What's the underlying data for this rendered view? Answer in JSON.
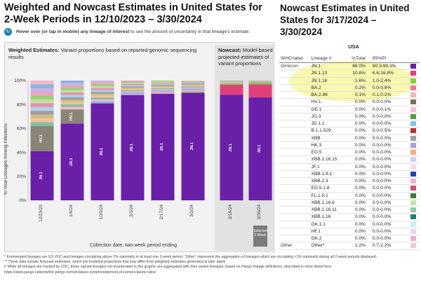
{
  "left": {
    "title": "Weighted and Nowcast Estimates in United States for 2-Week Periods in 12/10/2023 – 3/30/2024",
    "hover_bold": "Hover over (or tap in mobile) any lineage of interest",
    "hover_rest": " to see the amount of uncertainty in that lineage's estimate.",
    "weighted_bold": "Weighted Estimates:",
    "weighted_rest": " Variant proportions based on reported genomic sequencing results",
    "nowcast_bold": "Nowcast:",
    "nowcast_rest": " Model-based projected estimates of variant proportions",
    "selected_label": "Selected 2-Week"
  },
  "chart_data": {
    "type": "bar",
    "stacked": true,
    "ylabel": "% Viral Lineages Among Infections",
    "xlabel": "Collection date, two-week period ending",
    "ylim": [
      0,
      100
    ],
    "yticks": [
      "0%",
      "20%",
      "40%",
      "60%",
      "80%",
      "100%"
    ],
    "grid": false,
    "categories": [
      "12/23/23",
      "1/6/24",
      "1/20/24",
      "2/3/24",
      "2/17/24",
      "3/2/24",
      "3/16/24",
      "3/30/24"
    ],
    "nowcast_categories": [
      "3/16/24",
      "3/30/24"
    ],
    "series": [
      {
        "name": "JN.1",
        "color": "#6a1fa8",
        "values": [
          41,
          64,
          81,
          88,
          89,
          90,
          88,
          86
        ],
        "label_text": "JN.1"
      },
      {
        "name": "HV.1",
        "color": "#8a8478",
        "values": [
          21,
          12,
          0,
          0,
          0,
          0,
          0,
          0
        ],
        "label_text": "HV.1"
      },
      {
        "name": "JN.1.13",
        "color": "#e0407a",
        "values": [
          0,
          0,
          0,
          0,
          0,
          0,
          8.5,
          10.8
        ]
      },
      {
        "name": "JN.1.18",
        "color": "#7dd14a",
        "values": [
          0,
          0,
          0,
          0,
          0,
          0,
          1.2,
          1.6
        ]
      },
      {
        "name": "BA.2",
        "color": "#e97b9a",
        "values": [
          0,
          0,
          0,
          0,
          0,
          0,
          0,
          0.2
        ]
      },
      {
        "name": "Other",
        "color": "#f4c6d6",
        "values": [
          38,
          24,
          19,
          12,
          11,
          10,
          2.3,
          1.4
        ]
      }
    ],
    "minor_colors": [
      "#f5b8c8",
      "#8ab4e0",
      "#c8b4e0",
      "#f0a0c0",
      "#9ad07a",
      "#c0e0a0",
      "#e88fb0",
      "#b0d0f0",
      "#a0a0a0",
      "#d0c080",
      "#f5c0a0",
      "#80c0a0"
    ]
  },
  "nowcast_table": {
    "title": "Nowcast Estimates in United States for 3/17/2024 – 3/30/2024",
    "region": "USA",
    "headers": [
      "WHO label",
      "Lineage #",
      "%Total",
      "95%PI"
    ],
    "rows": [
      {
        "who": "Omicron",
        "lineage": "JN.1",
        "total": "86.0%",
        "pi": "80.3-90.3%",
        "color": "#6a1fa8"
      },
      {
        "who": "",
        "lineage": "JN.1.13",
        "total": "10.8%",
        "pi": "6.6-16.8%",
        "color": "#e0407a"
      },
      {
        "who": "",
        "lineage": "JN.1.18",
        "total": "1.6%",
        "pi": "1.0-2.4%",
        "color": "#7dd14a"
      },
      {
        "who": "",
        "lineage": "BA.2",
        "total": "0.2%",
        "pi": "0.0-0.8%",
        "color": "#e97b9a"
      },
      {
        "who": "",
        "lineage": "BA.2.86",
        "total": "0.1%",
        "pi": "0.1-0.2%",
        "color": "#f3b3c5"
      },
      {
        "who": "",
        "lineage": "HV.1",
        "total": "0.0%",
        "pi": "0.0-0.0%",
        "color": "#7a6f5e"
      },
      {
        "who": "",
        "lineage": "GE.1",
        "total": "0.0%",
        "pi": "0.0-0.1%",
        "color": "#f7c0d6"
      },
      {
        "who": "",
        "lineage": "JG.3",
        "total": "0.0%",
        "pi": "0.0-0.0%",
        "color": "#5a9a3a"
      },
      {
        "who": "",
        "lineage": "JD.1.1",
        "total": "0.0%",
        "pi": "0.0-0.0%",
        "color": "#8ac0e6"
      },
      {
        "who": "",
        "lineage": "B.1.1.529",
        "total": "0.0%",
        "pi": "0.0-0.5%",
        "color": "#c03030"
      },
      {
        "who": "",
        "lineage": "XBB",
        "total": "0.0%",
        "pi": "0.0-0.0%",
        "color": "#a0a0a0"
      },
      {
        "who": "",
        "lineage": "HK.3",
        "total": "0.0%",
        "pi": "0.0-0.0%",
        "color": "#b0a0d0"
      },
      {
        "who": "",
        "lineage": "EG.5",
        "total": "0.0%",
        "pi": "0.0-0.0%",
        "color": "#f0b080"
      },
      {
        "who": "",
        "lineage": "XBB.1.16.15",
        "total": "0.0%",
        "pi": "0.0-0.0%",
        "color": "#d8c8f0"
      },
      {
        "who": "",
        "lineage": "JF.1",
        "total": "0.0%",
        "pi": "0.0-0.0%",
        "color": "#f8d8e8"
      },
      {
        "who": "",
        "lineage": "XBB.1.9.1",
        "total": "0.0%",
        "pi": "0.0-0.0%",
        "color": "#2040c0"
      },
      {
        "who": "",
        "lineage": "XBB.2.3",
        "total": "0.0%",
        "pi": "0.0-0.0%",
        "color": "#e8b8c8"
      },
      {
        "who": "",
        "lineage": "EG.5.1.8",
        "total": "0.0%",
        "pi": "0.0-0.0%",
        "color": "#d05070"
      },
      {
        "who": "",
        "lineage": "FL.1.5.1",
        "total": "0.0%",
        "pi": "0.0-0.0%",
        "color": "#3a7a3a"
      },
      {
        "who": "",
        "lineage": "XBB.1.16.6",
        "total": "0.0%",
        "pi": "0.0-0.0%",
        "color": "#c8e0b0"
      },
      {
        "who": "",
        "lineage": "XBB.1.16.11",
        "total": "0.0%",
        "pi": "0.0-0.0%",
        "color": "#90c8a8"
      },
      {
        "who": "",
        "lineage": "XBB.1.16",
        "total": "0.0%",
        "pi": "0.0-0.0%",
        "color": "#208070"
      },
      {
        "who": "",
        "lineage": "GK.1.1",
        "total": "0.0%",
        "pi": "0.0-0.0%",
        "color": "#c8f0f0"
      },
      {
        "who": "",
        "lineage": "HF.1",
        "total": "0.0%",
        "pi": "0.0-0.0%",
        "color": "#e8d8f0"
      },
      {
        "who": "",
        "lineage": "GK.2",
        "total": "0.0%",
        "pi": "0.0-0.0%",
        "color": "#e8b0d0"
      },
      {
        "who": "Other",
        "lineage": "Other*",
        "total": "1.2%",
        "pi": "0.7-2.2%",
        "color": "#f4c6d6"
      }
    ]
  },
  "footnotes": [
    "*    Enumerated lineages are US VOC and lineages circulating above 1% nationally in at least one 2-week period. \"Other\" represents the aggregation of lineages which are circulating <1% nationally during all 2-week periods displayed.",
    "**   These data include Nowcast estimates, which are modeled projections that may differ from weighted estimates generated at later dates",
    "#    While all lineages are tracked by CDC, those named lineages not enumerated in this graphic are aggregated with their parent lineages, based on Pango lineage definitions, described in more detail here:",
    "https://www.pango.network/the-pango-nomenclature-system/statement-of-nomenclature-rules/."
  ]
}
